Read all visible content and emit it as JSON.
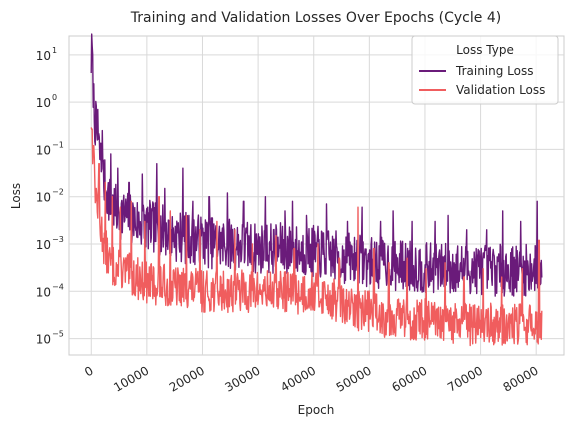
{
  "chart_data": {
    "type": "line",
    "title": "Training and Validation Losses Over Epochs (Cycle 4)",
    "xlabel": "Epoch",
    "ylabel": "Loss",
    "xlim": [
      -4000,
      85000
    ],
    "ylim": [
      4.5e-06,
      25
    ],
    "yscale": "log",
    "grid": true,
    "legend": {
      "title": "Loss Type",
      "placement": "top-right"
    },
    "x_ticks": [
      0,
      10000,
      20000,
      30000,
      40000,
      50000,
      60000,
      70000,
      80000
    ],
    "x_tick_labels": [
      "0",
      "10000",
      "20000",
      "30000",
      "40000",
      "50000",
      "60000",
      "70000",
      "80000"
    ],
    "y_ticks": [
      1e-05,
      0.0001,
      0.001,
      0.01,
      0.1,
      1,
      10
    ],
    "y_tick_labels": [
      {
        "base": "10",
        "exp": "−5"
      },
      {
        "base": "10",
        "exp": "−4"
      },
      {
        "base": "10",
        "exp": "−3"
      },
      {
        "base": "10",
        "exp": "−2"
      },
      {
        "base": "10",
        "exp": "−1"
      },
      {
        "base": "10",
        "exp": "0"
      },
      {
        "base": "10",
        "exp": "1"
      }
    ],
    "series": [
      {
        "name": "Training Loss",
        "color": "#6a1b7a",
        "x": [
          0,
          200,
          500,
          900,
          1500,
          2300,
          3300,
          4500,
          6000,
          8000,
          10000,
          12500,
          15000,
          17500,
          20000,
          22500,
          25000,
          27500,
          30000,
          32500,
          35000,
          37500,
          40000,
          42500,
          45000,
          47500,
          50000,
          52500,
          55000,
          57500,
          60000,
          62500,
          65000,
          67500,
          70000,
          72500,
          75000,
          77500,
          80000,
          81000
        ],
        "y": [
          8,
          12,
          0.6,
          0.25,
          0.08,
          0.02,
          0.008,
          0.005,
          0.004,
          0.003,
          0.0025,
          0.002,
          0.0015,
          0.0013,
          0.0012,
          0.001,
          0.001,
          0.0009,
          0.0008,
          0.0008,
          0.0008,
          0.0007,
          0.0007,
          0.0006,
          0.0005,
          0.0005,
          0.0004,
          0.0004,
          0.00035,
          0.00035,
          0.0003,
          0.0003,
          0.0003,
          0.0003,
          0.0003,
          0.00028,
          0.00028,
          0.00027,
          0.0003,
          0.0002
        ],
        "spikes_x": [
          300,
          1200,
          2000,
          3500,
          4800,
          6800,
          9200,
          11800,
          13200,
          16500,
          18300,
          21200,
          24500,
          27400,
          31300,
          34800,
          36200,
          38700,
          42300,
          46100,
          48700,
          52000,
          54300,
          57700,
          61800,
          64200,
          67500,
          71100,
          74000,
          77200,
          80200
        ],
        "spikes_y": [
          10,
          0.7,
          0.25,
          0.08,
          0.04,
          0.02,
          0.03,
          0.05,
          0.015,
          0.04,
          0.008,
          0.01,
          0.012,
          0.008,
          0.01,
          0.005,
          0.008,
          0.004,
          0.007,
          0.003,
          0.006,
          0.003,
          0.005,
          0.003,
          0.003,
          0.004,
          0.002,
          0.002,
          0.005,
          0.003,
          0.008
        ]
      },
      {
        "name": "Validation Loss",
        "color": "#f05d5e",
        "x": [
          0,
          200,
          500,
          900,
          1500,
          2300,
          3300,
          4500,
          6000,
          8000,
          10000,
          12500,
          15000,
          17500,
          20000,
          22500,
          25000,
          27500,
          30000,
          32500,
          35000,
          37500,
          40000,
          42500,
          45000,
          47500,
          50000,
          52500,
          55000,
          57500,
          60000,
          62500,
          65000,
          67500,
          70000,
          72500,
          75000,
          77500,
          80000,
          81000
        ],
        "y": [
          0.5,
          0.15,
          0.03,
          0.01,
          0.003,
          0.001,
          0.0004,
          0.0003,
          0.00025,
          0.0002,
          0.00015,
          0.00014,
          0.00012,
          0.00012,
          0.0001,
          0.0001,
          0.0001,
          0.0001,
          0.0001,
          0.0001,
          0.0001,
          9e-05,
          0.0001,
          8e-05,
          5e-05,
          4e-05,
          4e-05,
          3e-05,
          3e-05,
          2.5e-05,
          2.5e-05,
          2e-05,
          2e-05,
          2e-05,
          2e-05,
          2e-05,
          1.8e-05,
          2e-05,
          2e-05,
          2e-05
        ],
        "spikes_x": [
          400,
          1400,
          2500,
          3800,
          5200,
          7200,
          9600,
          12200,
          14200,
          17100,
          19500,
          22600,
          25800,
          29000,
          33200,
          36500,
          40800,
          44600,
          48000,
          50800,
          53500,
          56800,
          60200,
          63600,
          67000,
          70500,
          73800,
          77500,
          80500
        ],
        "spikes_y": [
          0.12,
          0.05,
          0.02,
          0.01,
          0.006,
          0.008,
          0.003,
          0.01,
          0.005,
          0.004,
          0.002,
          0.003,
          0.002,
          0.001,
          0.0015,
          0.0008,
          0.001,
          0.0005,
          0.006,
          0.0008,
          0.0004,
          0.0005,
          0.0003,
          0.0004,
          0.0002,
          0.0003,
          0.0002,
          0.0003,
          0.0012
        ]
      }
    ]
  }
}
